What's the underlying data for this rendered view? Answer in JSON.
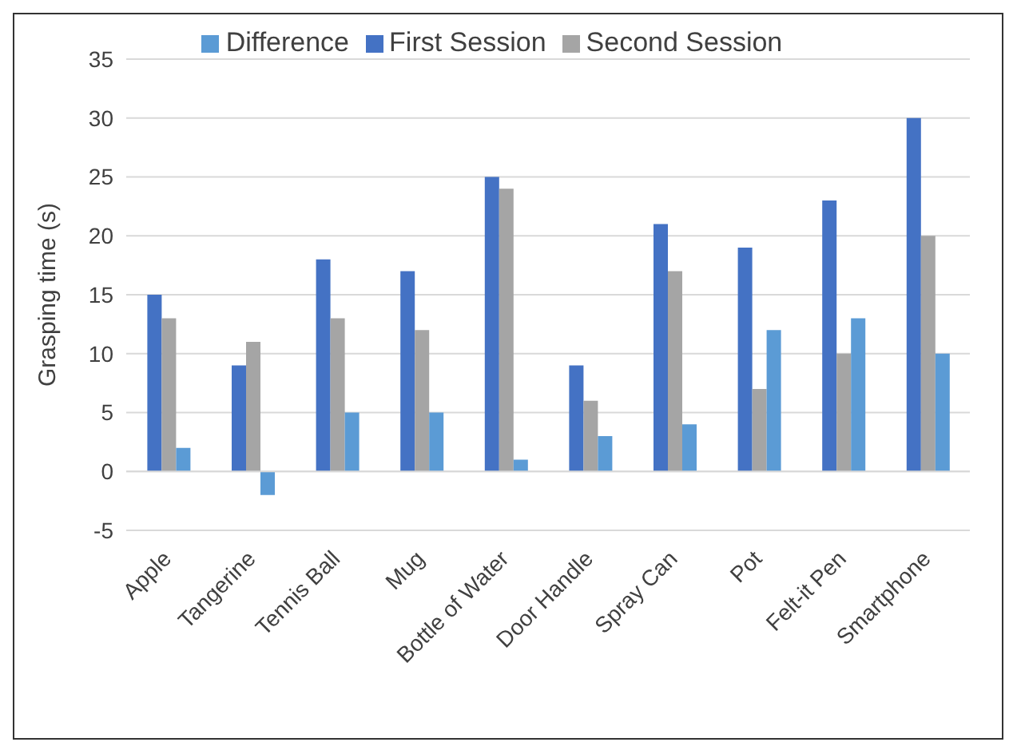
{
  "chart_data": {
    "type": "bar",
    "ylabel": "Grasping time (s)",
    "categories": [
      "Apple",
      "Tangerine",
      "Tennis Ball",
      "Mug",
      "Bottle of Water",
      "Door Handle",
      "Spray Can",
      "Pot",
      "Felt-it Pen",
      "Smartphone"
    ],
    "series": [
      {
        "name": "First Session",
        "color": "#4472c4",
        "values": [
          15,
          9,
          18,
          17,
          25,
          9,
          21,
          19,
          23,
          30
        ]
      },
      {
        "name": "Second Session",
        "color": "#a5a5a5",
        "values": [
          13,
          11,
          13,
          12,
          24,
          6,
          17,
          7,
          10,
          20
        ]
      },
      {
        "name": "Difference",
        "color": "#5b9bd5",
        "values": [
          2,
          -2,
          5,
          5,
          1,
          3,
          4,
          12,
          13,
          10
        ]
      }
    ],
    "ylim": [
      -5,
      35
    ],
    "yticks": [
      -5,
      0,
      5,
      10,
      15,
      20,
      25,
      30,
      35
    ],
    "grid": "y",
    "legend": "top"
  }
}
